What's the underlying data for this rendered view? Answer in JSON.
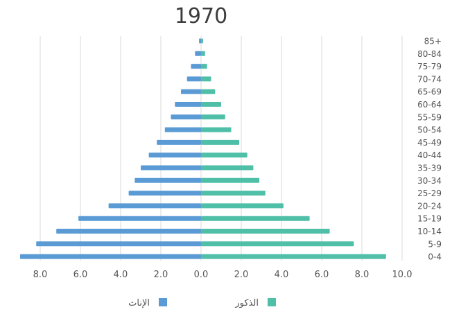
{
  "chart_data": {
    "type": "bar",
    "title": "1970",
    "orientation": "horizontal-population-pyramid",
    "categories": [
      "85+",
      "80-84",
      "75-79",
      "70-74",
      "65-69",
      "60-64",
      "55-59",
      "50-54",
      "45-49",
      "40-44",
      "35-39",
      "30-34",
      "25-29",
      "20-24",
      "15-19",
      "10-14",
      "5-9",
      "0-4"
    ],
    "series": [
      {
        "name": "الإناث",
        "side": "left",
        "color": "#5b9bd5",
        "values": [
          0.1,
          0.3,
          0.5,
          0.7,
          1.0,
          1.3,
          1.5,
          1.8,
          2.2,
          2.6,
          3.0,
          3.3,
          3.6,
          4.6,
          6.1,
          7.2,
          8.2,
          9.0
        ]
      },
      {
        "name": "الذكور",
        "side": "right",
        "color": "#4fbfa8",
        "values": [
          0.1,
          0.2,
          0.3,
          0.5,
          0.7,
          1.0,
          1.2,
          1.5,
          1.9,
          2.3,
          2.6,
          2.9,
          3.2,
          4.1,
          5.4,
          6.4,
          7.6,
          9.2
        ]
      }
    ],
    "xticks": [
      "8.0",
      "6.0",
      "4.0",
      "2.0",
      "0.0",
      "2.0",
      "4.0",
      "6.0",
      "8.0",
      "10.0"
    ],
    "xlim": [
      -9.7,
      10
    ],
    "grid": true,
    "legend_position": "bottom"
  }
}
